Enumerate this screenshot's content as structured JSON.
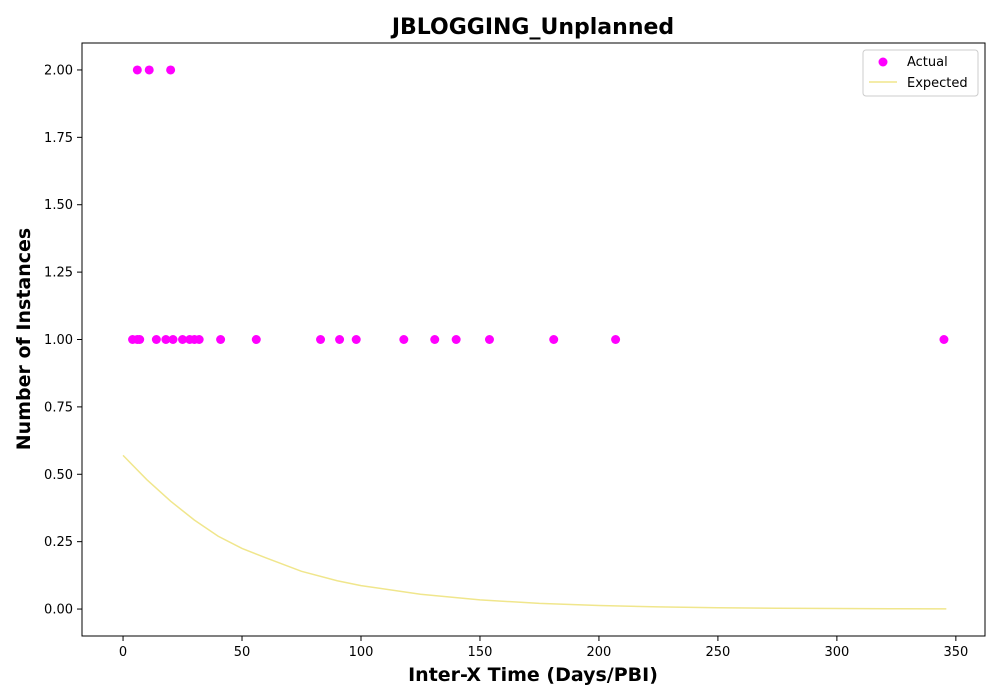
{
  "chart_data": {
    "type": "scatter",
    "title": "JBLOGGING_Unplanned",
    "xlabel": "Inter-X Time (Days/PBI)",
    "ylabel": "Number of Instances",
    "xlim": [
      -17.25,
      362.25
    ],
    "ylim": [
      -0.1,
      2.1
    ],
    "xticks": [
      "0",
      "50",
      "100",
      "150",
      "200",
      "250",
      "300",
      "350"
    ],
    "yticks": [
      "0.00",
      "0.25",
      "0.50",
      "0.75",
      "1.00",
      "1.25",
      "1.50",
      "1.75",
      "2.00"
    ],
    "grid": false,
    "legend_position": "top-right",
    "series": [
      {
        "name": "Actual",
        "kind": "scatter",
        "color": "#ff00ff",
        "points": [
          [
            6,
            2
          ],
          [
            11,
            2
          ],
          [
            20,
            2
          ],
          [
            4,
            1
          ],
          [
            6,
            1
          ],
          [
            7,
            1
          ],
          [
            14,
            1
          ],
          [
            18,
            1
          ],
          [
            21,
            1
          ],
          [
            25,
            1
          ],
          [
            28,
            1
          ],
          [
            30,
            1
          ],
          [
            32,
            1
          ],
          [
            41,
            1
          ],
          [
            56,
            1
          ],
          [
            83,
            1
          ],
          [
            91,
            1
          ],
          [
            98,
            1
          ],
          [
            118,
            1
          ],
          [
            131,
            1
          ],
          [
            140,
            1
          ],
          [
            154,
            1
          ],
          [
            181,
            1
          ],
          [
            207,
            1
          ],
          [
            345,
            1
          ]
        ]
      },
      {
        "name": "Expected",
        "kind": "line",
        "color": "#f0e68c",
        "points": [
          [
            0,
            0.57
          ],
          [
            10,
            0.48
          ],
          [
            20,
            0.4
          ],
          [
            30,
            0.33
          ],
          [
            40,
            0.27
          ],
          [
            50,
            0.225
          ],
          [
            60,
            0.19
          ],
          [
            75,
            0.14
          ],
          [
            90,
            0.105
          ],
          [
            100,
            0.087
          ],
          [
            125,
            0.055
          ],
          [
            150,
            0.034
          ],
          [
            175,
            0.021
          ],
          [
            200,
            0.013
          ],
          [
            225,
            0.008
          ],
          [
            250,
            0.005
          ],
          [
            275,
            0.003
          ],
          [
            300,
            0.002
          ],
          [
            325,
            0.001
          ],
          [
            346,
            0.0005
          ]
        ]
      }
    ]
  }
}
